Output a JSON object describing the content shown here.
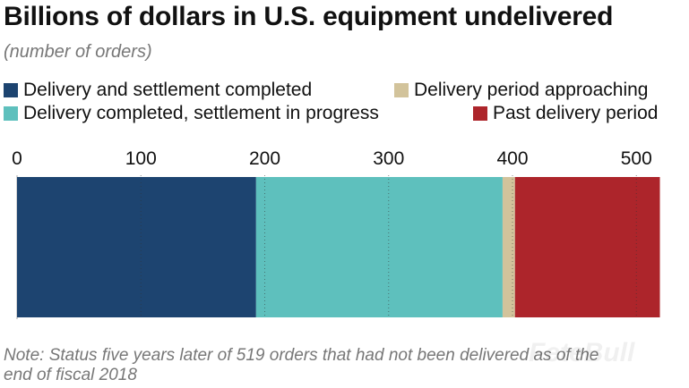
{
  "chart_data": {
    "type": "bar",
    "orientation": "horizontal-stacked",
    "title": "Billions of dollars in U.S. equipment undelivered",
    "subtitle": "(number of orders)",
    "categories": [
      "orders"
    ],
    "series": [
      {
        "name": "Delivery and settlement completed",
        "values": [
          193
        ],
        "color": "#1d4470"
      },
      {
        "name": "Delivery completed, settlement in progress",
        "values": [
          199
        ],
        "color": "#5ec0bd"
      },
      {
        "name": "Delivery period approaching",
        "values": [
          10
        ],
        "color": "#d2c39b"
      },
      {
        "name": "Past delivery period",
        "values": [
          117
        ],
        "color": "#ad252b"
      }
    ],
    "xlim": [
      0,
      519
    ],
    "xticks": [
      "0",
      "100",
      "200",
      "300",
      "400",
      "500"
    ],
    "xtick_values": [
      0,
      100,
      200,
      300,
      400,
      500
    ],
    "grid": true,
    "legend_placement": "top",
    "note": "Note: Status five years later of 519 orders that had not been delivered as of the end of fiscal 2018"
  },
  "watermark": "FeteBull"
}
